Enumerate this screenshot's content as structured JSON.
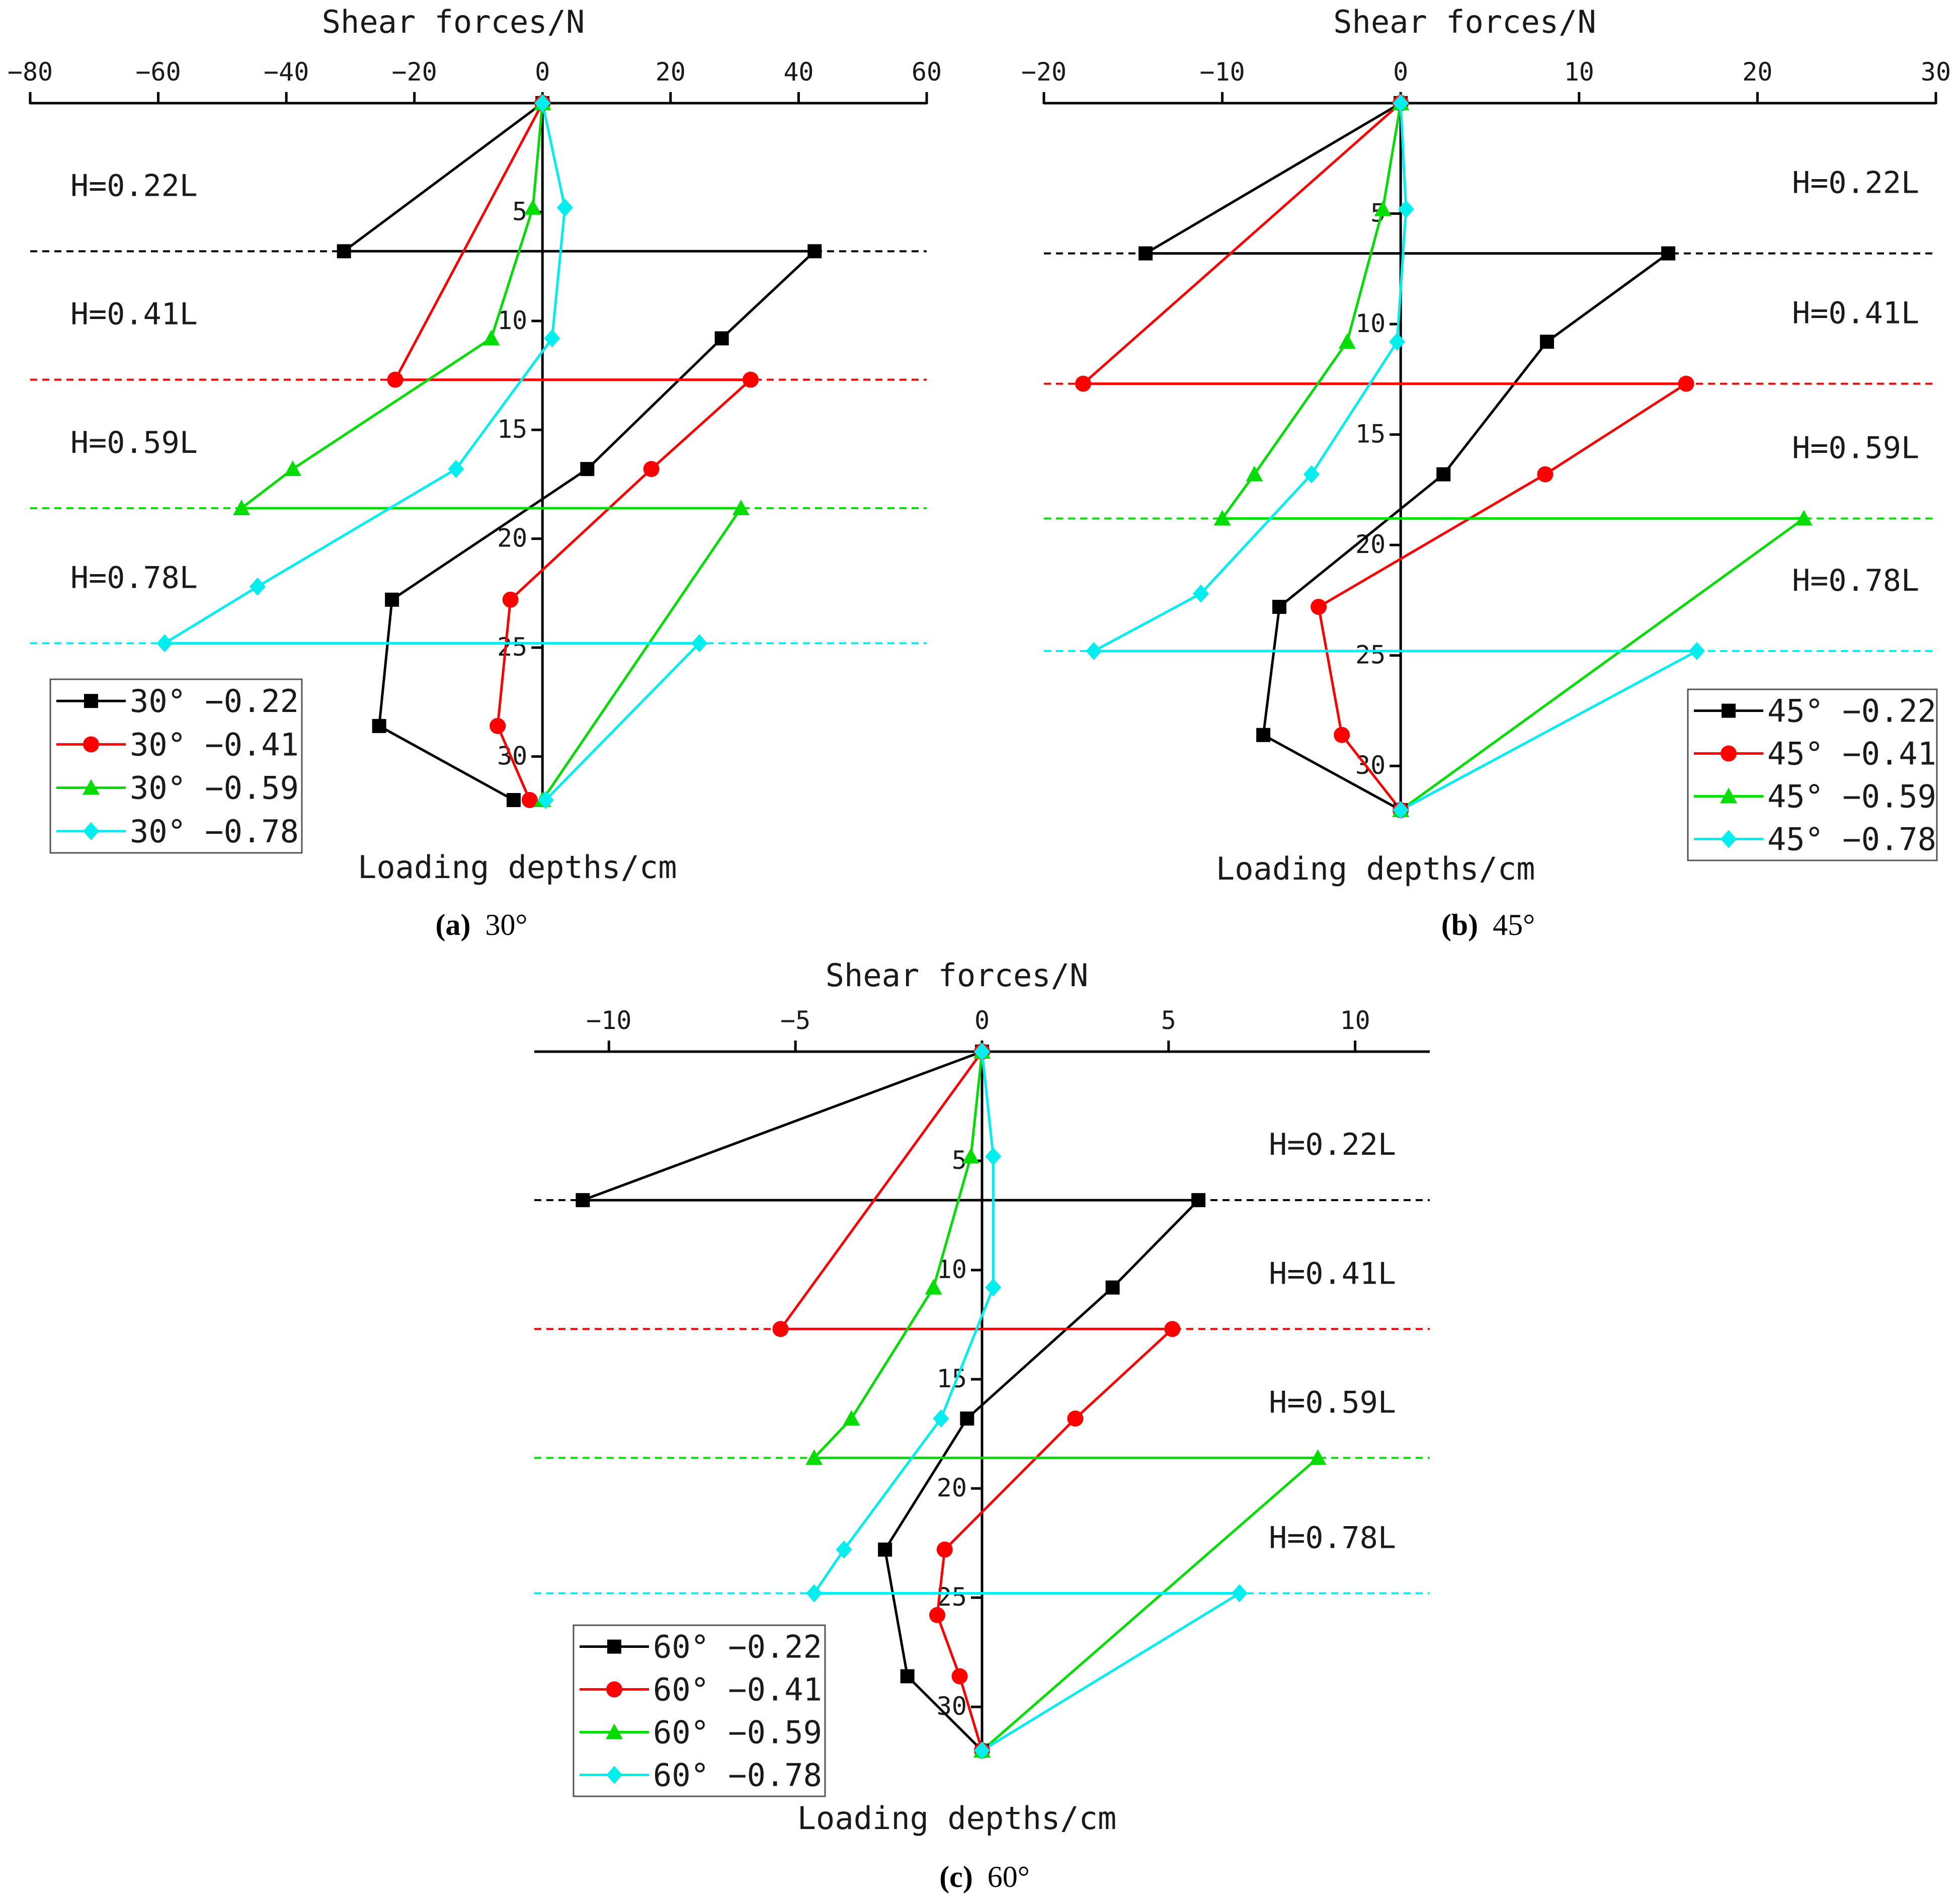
{
  "figure": {
    "panels": [
      {
        "id": "a",
        "caption_letter": "(a)",
        "caption_angle": "30°"
      },
      {
        "id": "b",
        "caption_letter": "(b)",
        "caption_angle": "45°"
      },
      {
        "id": "c",
        "caption_letter": "(c)",
        "caption_angle": "60°"
      }
    ]
  },
  "chart_data": [
    {
      "type": "line",
      "xlabel": "Shear forces/N",
      "ylabel": "Loading depths/cm",
      "xlim": [
        -80,
        60
      ],
      "ylim": [
        0,
        32
      ],
      "x_ticks": [
        -80,
        -60,
        -40,
        -20,
        0,
        20,
        40,
        60
      ],
      "y_ticks": [
        5,
        10,
        15,
        20,
        25,
        30
      ],
      "legend_position": "bottom-left",
      "grid": false,
      "series": [
        {
          "name": "30° -0.22",
          "color": "#000000",
          "marker": "square",
          "points": [
            [
              0,
              0
            ],
            [
              -31,
              6.8
            ],
            [
              42.5,
              6.8
            ],
            [
              28,
              10.8
            ],
            [
              7,
              16.8
            ],
            [
              -23.5,
              22.8
            ],
            [
              -25.5,
              28.6
            ],
            [
              -4.5,
              32
            ]
          ]
        },
        {
          "name": "30° -0.41",
          "color": "#ff0000",
          "marker": "circle",
          "points": [
            [
              0,
              0
            ],
            [
              -23,
              12.7
            ],
            [
              32.5,
              12.7
            ],
            [
              17,
              16.8
            ],
            [
              -5,
              22.8
            ],
            [
              -7,
              28.6
            ],
            [
              -2,
              32
            ]
          ]
        },
        {
          "name": "30° -0.59",
          "color": "#00dd00",
          "marker": "triangle",
          "points": [
            [
              0,
              0
            ],
            [
              -1.5,
              4.8
            ],
            [
              -8,
              10.8
            ],
            [
              -39,
              16.8
            ],
            [
              -47,
              18.6
            ],
            [
              31,
              18.6
            ],
            [
              0,
              32
            ]
          ]
        },
        {
          "name": "30° -0.78",
          "color": "#00eeee",
          "marker": "diamond",
          "points": [
            [
              0,
              0
            ],
            [
              3.5,
              4.8
            ],
            [
              1.5,
              10.8
            ],
            [
              -13.5,
              16.8
            ],
            [
              -44.5,
              22.2
            ],
            [
              -59,
              24.8
            ],
            [
              24.5,
              24.8
            ],
            [
              0.5,
              32
            ]
          ]
        }
      ],
      "hlines": [
        {
          "y": 6.8,
          "color": "#000000",
          "label": "H=0.22L"
        },
        {
          "y": 12.7,
          "color": "#ff0000",
          "label": "H=0.41L"
        },
        {
          "y": 18.6,
          "color": "#00dd00",
          "label": "H=0.59L"
        },
        {
          "y": 24.8,
          "color": "#00eeee",
          "label": "H=0.78L"
        }
      ]
    },
    {
      "type": "line",
      "xlabel": "Shear forces/N",
      "ylabel": "Loading depths/cm",
      "xlim": [
        -20,
        30
      ],
      "ylim": [
        0,
        32
      ],
      "x_ticks": [
        -20,
        -10,
        0,
        10,
        20,
        30
      ],
      "y_ticks": [
        5,
        10,
        15,
        20,
        25,
        30
      ],
      "legend_position": "bottom-right",
      "grid": false,
      "series": [
        {
          "name": "45° -0.22",
          "color": "#000000",
          "marker": "square",
          "points": [
            [
              0,
              0
            ],
            [
              -14.3,
              6.8
            ],
            [
              15,
              6.8
            ],
            [
              8.2,
              10.8
            ],
            [
              2.4,
              16.8
            ],
            [
              -6.8,
              22.8
            ],
            [
              -7.7,
              28.6
            ],
            [
              0,
              32
            ]
          ]
        },
        {
          "name": "45° -0.41",
          "color": "#ff0000",
          "marker": "circle",
          "points": [
            [
              0,
              0
            ],
            [
              -17.8,
              12.7
            ],
            [
              16,
              12.7
            ],
            [
              8.1,
              16.8
            ],
            [
              -4.6,
              22.8
            ],
            [
              -3.3,
              28.6
            ],
            [
              0,
              32
            ]
          ]
        },
        {
          "name": "45° -0.59",
          "color": "#00dd00",
          "marker": "triangle",
          "points": [
            [
              0,
              0
            ],
            [
              -1,
              4.8
            ],
            [
              -3,
              10.8
            ],
            [
              -8.2,
              16.8
            ],
            [
              -10,
              18.8
            ],
            [
              22.6,
              18.8
            ],
            [
              0,
              32
            ]
          ]
        },
        {
          "name": "45° -0.78",
          "color": "#00eeee",
          "marker": "diamond",
          "points": [
            [
              0,
              0
            ],
            [
              0.3,
              4.8
            ],
            [
              -0.2,
              10.8
            ],
            [
              -5,
              16.8
            ],
            [
              -11.2,
              22.2
            ],
            [
              -17.2,
              24.8
            ],
            [
              16.6,
              24.8
            ],
            [
              0,
              32
            ]
          ]
        }
      ],
      "hlines": [
        {
          "y": 6.8,
          "color": "#000000",
          "label": "H=0.22L"
        },
        {
          "y": 12.7,
          "color": "#ff0000",
          "label": "H=0.41L"
        },
        {
          "y": 18.8,
          "color": "#00dd00",
          "label": "H=0.59L"
        },
        {
          "y": 24.8,
          "color": "#00eeee",
          "label": "H=0.78L"
        }
      ]
    },
    {
      "type": "line",
      "xlabel": "Shear forces/N",
      "ylabel": "Loading depths/cm",
      "xlim": [
        -12,
        12
      ],
      "ylim": [
        0,
        32
      ],
      "x_ticks": [
        -10,
        -5,
        0,
        5,
        10
      ],
      "y_ticks": [
        5,
        10,
        15,
        20,
        25,
        30
      ],
      "legend_position": "bottom-left",
      "grid": false,
      "series": [
        {
          "name": "60° -0.22",
          "color": "#000000",
          "marker": "square",
          "points": [
            [
              0,
              0
            ],
            [
              -10.7,
              6.8
            ],
            [
              5.8,
              6.8
            ],
            [
              3.5,
              10.8
            ],
            [
              -0.4,
              16.8
            ],
            [
              -2.6,
              22.8
            ],
            [
              -2,
              28.6
            ],
            [
              0,
              32
            ]
          ]
        },
        {
          "name": "60° -0.41",
          "color": "#ff0000",
          "marker": "circle",
          "points": [
            [
              0,
              0
            ],
            [
              -5.4,
              12.7
            ],
            [
              5.1,
              12.7
            ],
            [
              2.5,
              16.8
            ],
            [
              -1,
              22.8
            ],
            [
              -1.2,
              25.8
            ],
            [
              -0.6,
              28.6
            ],
            [
              0,
              32
            ]
          ]
        },
        {
          "name": "60° -0.59",
          "color": "#00dd00",
          "marker": "triangle",
          "points": [
            [
              0,
              0
            ],
            [
              -0.3,
              4.8
            ],
            [
              -1.3,
              10.8
            ],
            [
              -3.5,
              16.8
            ],
            [
              -4.5,
              18.6
            ],
            [
              9,
              18.6
            ],
            [
              0,
              32
            ]
          ]
        },
        {
          "name": "60° -0.78",
          "color": "#00eeee",
          "marker": "diamond",
          "points": [
            [
              0,
              0
            ],
            [
              0.3,
              4.8
            ],
            [
              0.3,
              10.8
            ],
            [
              -1.1,
              16.8
            ],
            [
              -3.7,
              22.8
            ],
            [
              -4.5,
              24.8
            ],
            [
              6.9,
              24.8
            ],
            [
              0,
              32
            ]
          ]
        }
      ],
      "hlines": [
        {
          "y": 6.8,
          "color": "#000000",
          "label": "H=0.22L"
        },
        {
          "y": 12.7,
          "color": "#ff0000",
          "label": "H=0.41L"
        },
        {
          "y": 18.6,
          "color": "#00dd00",
          "label": "H=0.59L"
        },
        {
          "y": 24.8,
          "color": "#00eeee",
          "label": "H=0.78L"
        }
      ]
    }
  ]
}
